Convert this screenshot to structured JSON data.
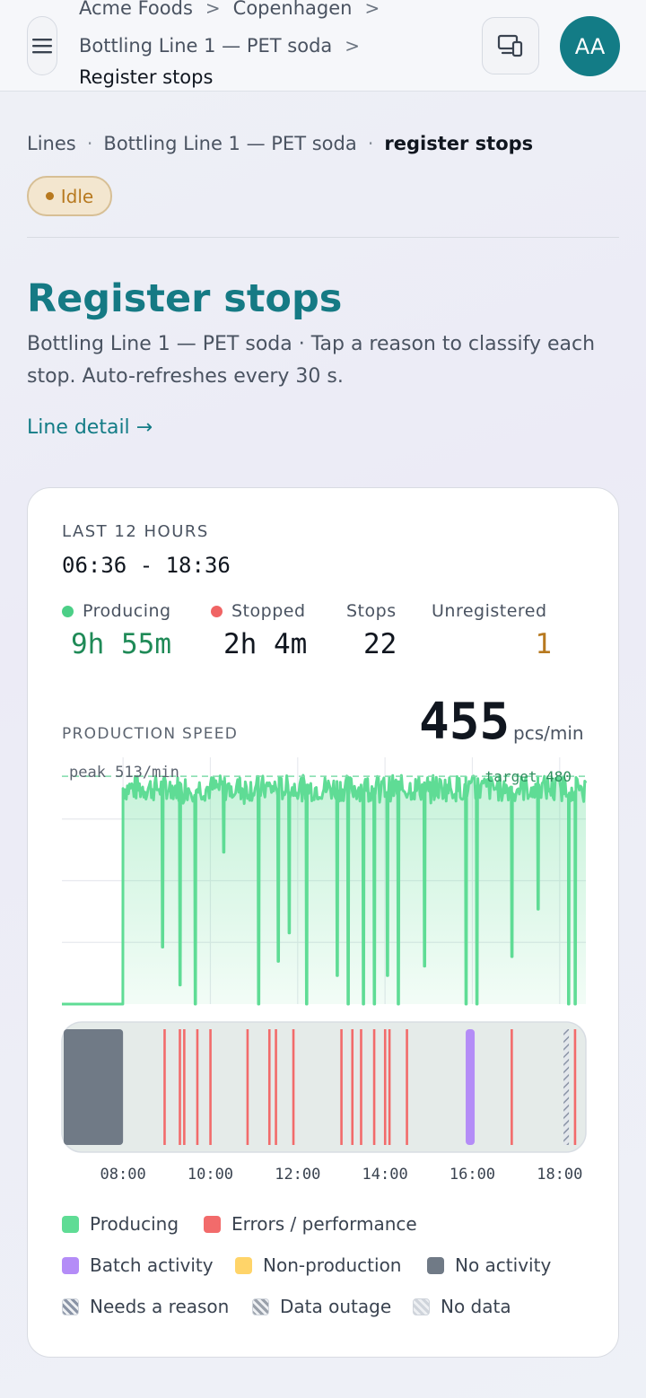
{
  "topbar": {
    "crumbs": [
      "Acme Foods",
      "Copenhagen",
      "Bottling Line 1 — PET soda"
    ],
    "current": "Register stops",
    "avatar_initials": "AA"
  },
  "breadcrumb": {
    "items": [
      "Lines",
      "Bottling Line 1 — PET soda"
    ],
    "current": "register stops"
  },
  "status": {
    "label": "Idle",
    "color": "#b7791f"
  },
  "page": {
    "title": "Register stops",
    "subtitle": "Bottling Line 1 — PET soda · Tap a reason to classify each stop. Auto-refreshes every 30 s.",
    "link": "Line detail →"
  },
  "summary": {
    "range_label": "LAST 12 HOURS",
    "range_value": "06:36 - 18:36",
    "stats": [
      {
        "label": "Producing",
        "value": "9h 55m",
        "color": "#1f8a57"
      },
      {
        "label": "Stopped",
        "value": "2h 4m",
        "color": "#10161f"
      },
      {
        "label": "Stops",
        "value": "22",
        "color": "#10161f"
      },
      {
        "label": "Unregistered",
        "value": "1",
        "color": "#b7791f"
      }
    ]
  },
  "speed": {
    "label": "PRODUCTION SPEED",
    "value": "455",
    "unit": "pcs/min"
  },
  "chart_data": {
    "type": "area",
    "peak_label": "peak 513/min",
    "target_label": "target 480",
    "target": 480,
    "ylim": [
      0,
      520
    ],
    "xlim_hours": [
      6.6,
      18.6
    ],
    "tick_labels": [
      "08:00",
      "10:00",
      "12:00",
      "14:00",
      "16:00",
      "18:00"
    ],
    "tick_hours": [
      8,
      10,
      12,
      14,
      16,
      18
    ],
    "baseline_value": 0,
    "producing_start_hour": 8.0,
    "dips": [
      {
        "hour": 8.9,
        "value": 120
      },
      {
        "hour": 9.3,
        "value": 40
      },
      {
        "hour": 9.65,
        "value": 0
      },
      {
        "hour": 10.3,
        "value": 320
      },
      {
        "hour": 11.1,
        "value": 0
      },
      {
        "hour": 11.55,
        "value": 90
      },
      {
        "hour": 11.8,
        "value": 150
      },
      {
        "hour": 12.2,
        "value": 0
      },
      {
        "hour": 12.9,
        "value": 60
      },
      {
        "hour": 13.15,
        "value": 0
      },
      {
        "hour": 13.5,
        "value": 0
      },
      {
        "hour": 13.75,
        "value": 0
      },
      {
        "hour": 14.05,
        "value": 60
      },
      {
        "hour": 14.3,
        "value": 0
      },
      {
        "hour": 14.9,
        "value": 80
      },
      {
        "hour": 15.85,
        "value": 0
      },
      {
        "hour": 16.1,
        "value": 0
      },
      {
        "hour": 16.9,
        "value": 100
      },
      {
        "hour": 17.5,
        "value": 200
      },
      {
        "hour": 18.2,
        "value": 0
      },
      {
        "hour": 18.35,
        "value": 0
      }
    ],
    "timeline": {
      "no_activity": [
        6.6,
        8.0
      ],
      "errors": [
        8.95,
        9.3,
        9.4,
        9.7,
        10.0,
        10.85,
        11.35,
        11.5,
        11.9,
        13.0,
        13.25,
        13.45,
        13.75,
        14.0,
        14.1,
        14.5,
        16.9,
        18.35
      ],
      "batch": [
        15.95
      ],
      "needs_reason": [
        18.15
      ]
    }
  },
  "legend": [
    {
      "label": "Producing",
      "color": "#5fdc95",
      "kind": "solid"
    },
    {
      "label": "Errors / performance",
      "color": "#f26b6b",
      "kind": "solid"
    },
    {
      "label": "Batch activity",
      "color": "#b48cf7",
      "kind": "solid"
    },
    {
      "label": "Non-production",
      "color": "#ffd469",
      "kind": "solid"
    },
    {
      "label": "No activity",
      "color": "#707a86",
      "kind": "solid"
    },
    {
      "label": "Needs a reason",
      "color": "#8a94a6",
      "kind": "hatch"
    },
    {
      "label": "Data outage",
      "color": "#9aa1ab",
      "kind": "hatch"
    },
    {
      "label": "No data",
      "color": "#cfd4db",
      "kind": "hatch"
    }
  ]
}
